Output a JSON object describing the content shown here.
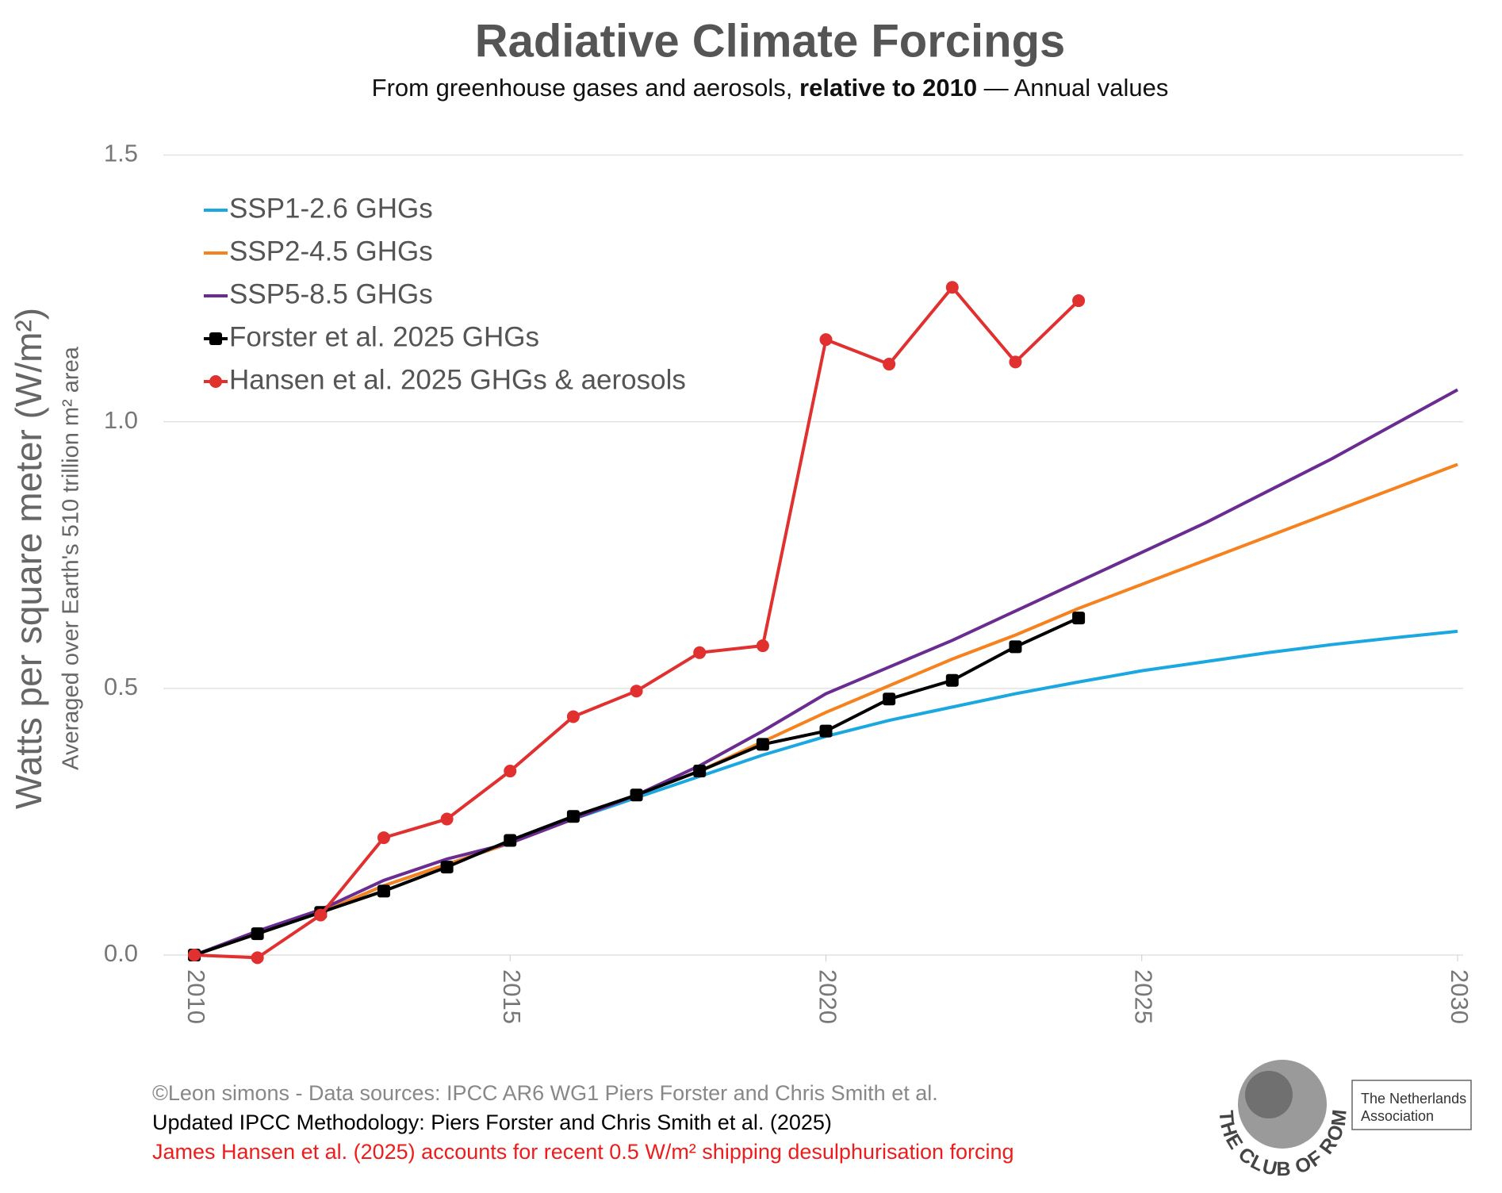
{
  "chart_data": {
    "type": "line",
    "title": "Radiative Climate Forcings",
    "subtitle": [
      "From greenhouse gases and aerosols, ",
      "relative to 2010",
      " — Annual values"
    ],
    "ylabel": "Watts per square meter (W/m²)",
    "ylabel2": "Averaged over Earth's 510 trillion m² area",
    "x": [
      2010,
      2011,
      2012,
      2013,
      2014,
      2015,
      2016,
      2017,
      2018,
      2019,
      2020,
      2021,
      2022,
      2023,
      2024,
      2025,
      2026,
      2027,
      2028,
      2029,
      2030
    ],
    "xlim": [
      2010,
      2030
    ],
    "xticks": [
      2010,
      2015,
      2020,
      2025,
      2030
    ],
    "ylim": [
      0,
      1.5
    ],
    "yticks": [
      {
        "value": 0,
        "label": "0.0"
      },
      0.5,
      {
        "value": 1,
        "label": "1.0"
      },
      1.5
    ],
    "grid": true,
    "legend": "top-left",
    "series": [
      {
        "name": "SSP1-2.6 GHGs",
        "color": "#1ba7e0",
        "marker": "none",
        "values": [
          0,
          0.04,
          0.08,
          0.13,
          0.17,
          0.21,
          0.255,
          0.295,
          0.335,
          0.375,
          0.41,
          0.44,
          0.465,
          0.49,
          0.512,
          0.533,
          0.55,
          0.567,
          0.582,
          0.595,
          0.607
        ]
      },
      {
        "name": "SSP2-4.5 GHGs",
        "color": "#f5821f",
        "marker": "none",
        "values": [
          0,
          0.04,
          0.08,
          0.13,
          0.17,
          0.21,
          0.255,
          0.3,
          0.345,
          0.4,
          0.455,
          0.505,
          0.555,
          0.6,
          0.65,
          0.695,
          0.74,
          0.785,
          0.83,
          0.875,
          0.92
        ]
      },
      {
        "name": "SSP5-8.5 GHGs",
        "color": "#6a2c91",
        "marker": "none",
        "values": [
          0,
          0.045,
          0.085,
          0.14,
          0.18,
          0.21,
          0.255,
          0.3,
          0.355,
          0.42,
          0.49,
          0.54,
          0.59,
          0.645,
          0.7,
          0.755,
          0.81,
          0.87,
          0.93,
          0.995,
          1.06
        ]
      },
      {
        "name": "Forster et al. 2025 GHGs",
        "color": "#000000",
        "marker": "square",
        "values": [
          0,
          0.04,
          0.08,
          0.12,
          0.165,
          0.215,
          0.26,
          0.3,
          0.345,
          0.395,
          0.42,
          0.48,
          0.515,
          0.578,
          0.632,
          null,
          null,
          null,
          null,
          null,
          null
        ]
      },
      {
        "name": "Hansen et al. 2025 GHGs & aerosols",
        "color": "#e03030",
        "marker": "circle",
        "values": [
          0,
          -0.005,
          0.075,
          0.22,
          0.255,
          0.345,
          0.447,
          0.495,
          0.567,
          0.58,
          1.154,
          1.108,
          1.252,
          1.112,
          1.227,
          null,
          null,
          null,
          null,
          null,
          null
        ]
      }
    ]
  },
  "footer": [
    {
      "text": "©Leon simons - Data sources: IPCC AR6 WG1 Piers Forster and Chris Smith et al.",
      "color": "#888888"
    },
    {
      "text": "Updated IPCC Methodology: Piers Forster and Chris Smith et al. (2025)",
      "color": "#000000"
    },
    {
      "text": "James Hansen et al. (2025) accounts for recent 0.5 W/m² shipping desulphurisation forcing",
      "color": "#ee1c1c"
    }
  ],
  "logo": {
    "name": "THE CLUB OF ROME",
    "association": [
      "The Netherlands",
      "Association"
    ]
  }
}
